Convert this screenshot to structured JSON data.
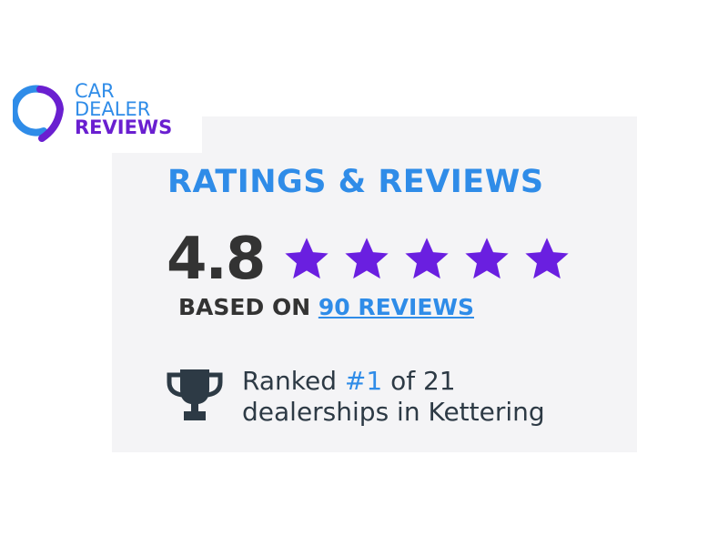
{
  "logo": {
    "line1": "CAR",
    "line2": "DEALER",
    "line3": "REVIEWS"
  },
  "widget": {
    "heading": "RATINGS & REVIEWS",
    "score": "4.8",
    "stars": 5,
    "star_color": "#6a1fe0",
    "based_prefix": "BASED ON",
    "reviews_link": "90 REVIEWS",
    "rank_prefix": "Ranked",
    "rank_number": "#1",
    "rank_suffix": "of 21",
    "rank_line2": "dealerships in Kettering",
    "icon": "trophy-icon"
  }
}
